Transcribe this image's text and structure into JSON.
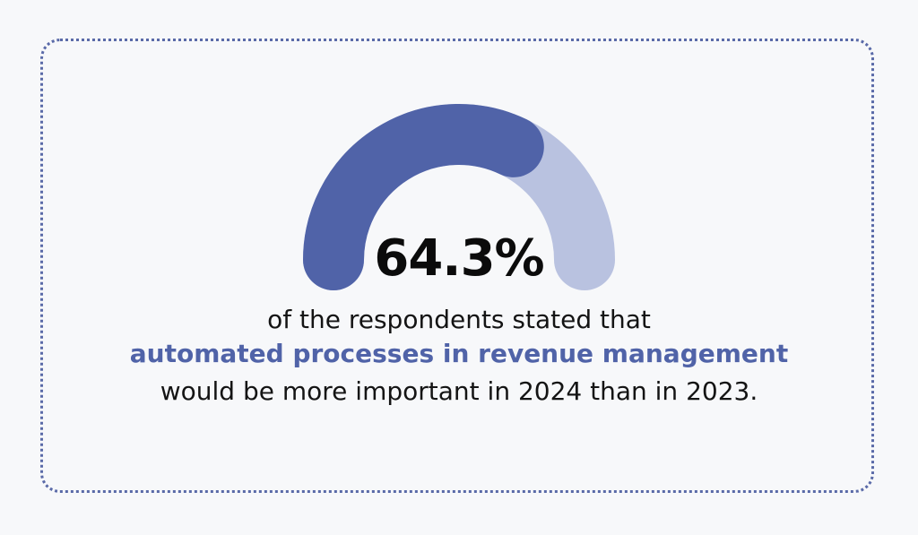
{
  "chart_data": {
    "type": "gauge",
    "value": 64.3,
    "max": 100,
    "value_label": "64.3%",
    "colors": {
      "filled": "#5063a8",
      "remaining": "#b9c2e0",
      "border": "#5a6aa8",
      "highlight_text": "#5063a8"
    }
  },
  "caption": {
    "line1": "of the respondents stated that",
    "line2": "automated processes in revenue management",
    "line3": "would be more important in 2024 than in 2023."
  }
}
